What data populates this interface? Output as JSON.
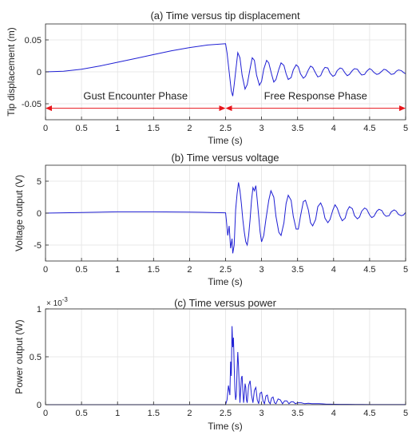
{
  "chart_data": [
    {
      "type": "line",
      "title": "(a) Time versus tip displacement",
      "xlabel": "Time (s)",
      "ylabel": "Tip displacement (m)",
      "xlim": [
        0,
        5
      ],
      "ylim": [
        -0.075,
        0.075
      ],
      "xticks": [
        0,
        0.5,
        1,
        1.5,
        2,
        2.5,
        3,
        3.5,
        4,
        4.5,
        5
      ],
      "xtick_labels": [
        "0",
        "0.5",
        "1",
        "1.5",
        "2",
        "2.5",
        "3",
        "3.5",
        "4",
        "4.5",
        "5"
      ],
      "yticks": [
        -0.05,
        0,
        0.05
      ],
      "ytick_labels": [
        "-0.05",
        "0",
        "0.05"
      ],
      "grid": true,
      "line_color": "#1f1fd4",
      "annotation_color": "#e8151b",
      "annotations": [
        {
          "text": "Gust Encounter Phase",
          "x_from": 0,
          "x_to": 2.5,
          "y": -0.057,
          "label_x": 1.25,
          "label_y": -0.043
        },
        {
          "text": "Free Response Phase",
          "x_from": 2.5,
          "x_to": 5,
          "y": -0.057,
          "label_x": 3.75,
          "label_y": -0.043
        }
      ],
      "series": [
        {
          "x": [
            0,
            0.25,
            0.5,
            0.75,
            1,
            1.25,
            1.5,
            1.75,
            2,
            2.25,
            2.5,
            2.52,
            2.55,
            2.58,
            2.6,
            2.62,
            2.65,
            2.67,
            2.7,
            2.73,
            2.77,
            2.8,
            2.84,
            2.87,
            2.9,
            2.93,
            2.97,
            3.0,
            3.03,
            3.07,
            3.1,
            3.14,
            3.17,
            3.2,
            3.24,
            3.27,
            3.31,
            3.34,
            3.37,
            3.41,
            3.44,
            3.48,
            3.51,
            3.54,
            3.58,
            3.61,
            3.65,
            3.68,
            3.71,
            3.75,
            3.78,
            3.82,
            3.85,
            3.88,
            3.92,
            3.95,
            3.99,
            4.02,
            4.05,
            4.09,
            4.12,
            4.16,
            4.19,
            4.22,
            4.26,
            4.29,
            4.33,
            4.36,
            4.39,
            4.43,
            4.46,
            4.5,
            4.53,
            4.56,
            4.6,
            4.63,
            4.67,
            4.7,
            4.73,
            4.77,
            4.8,
            4.84,
            4.87,
            4.9,
            4.94,
            4.97,
            5.0
          ],
          "y": [
            0,
            0.001,
            0.004,
            0.009,
            0.015,
            0.021,
            0.027,
            0.033,
            0.038,
            0.042,
            0.044,
            0.03,
            0.0,
            -0.03,
            -0.038,
            -0.02,
            0.01,
            0.03,
            0.022,
            -0.005,
            -0.027,
            -0.02,
            0.005,
            0.022,
            0.018,
            -0.005,
            -0.021,
            -0.015,
            0.004,
            0.018,
            0.014,
            -0.004,
            -0.016,
            -0.012,
            0.004,
            0.014,
            0.01,
            -0.003,
            -0.012,
            -0.009,
            0.003,
            0.011,
            0.008,
            -0.003,
            -0.01,
            -0.007,
            0.003,
            0.009,
            0.007,
            -0.002,
            -0.008,
            -0.006,
            0.002,
            0.007,
            0.006,
            -0.002,
            -0.007,
            -0.005,
            0.002,
            0.006,
            0.005,
            -0.002,
            -0.006,
            -0.004,
            0.002,
            0.005,
            0.004,
            -0.001,
            -0.005,
            -0.004,
            0.001,
            0.005,
            0.003,
            -0.001,
            -0.004,
            -0.003,
            0.001,
            0.004,
            0.003,
            -0.001,
            -0.004,
            -0.003,
            0.001,
            0.003,
            0.002,
            -0.001,
            -0.003
          ]
        }
      ]
    },
    {
      "type": "line",
      "title": "(b) Time versus voltage",
      "xlabel": "Time (s)",
      "ylabel": "Voltage output (V)",
      "xlim": [
        0,
        5
      ],
      "ylim": [
        -7.5,
        7.5
      ],
      "xticks": [
        0,
        0.5,
        1,
        1.5,
        2,
        2.5,
        3,
        3.5,
        4,
        4.5,
        5
      ],
      "xtick_labels": [
        "0",
        "0.5",
        "1",
        "1.5",
        "2",
        "2.5",
        "3",
        "3.5",
        "4",
        "4.5",
        "5"
      ],
      "yticks": [
        -5,
        0,
        5
      ],
      "ytick_labels": [
        "-5",
        "0",
        "5"
      ],
      "grid": true,
      "line_color": "#1f1fd4",
      "series": [
        {
          "x": [
            0,
            0.5,
            1,
            1.5,
            2,
            2.3,
            2.5,
            2.51,
            2.53,
            2.55,
            2.57,
            2.59,
            2.6,
            2.62,
            2.64,
            2.66,
            2.68,
            2.7,
            2.72,
            2.74,
            2.76,
            2.78,
            2.8,
            2.82,
            2.84,
            2.86,
            2.88,
            2.9,
            2.92,
            2.94,
            2.96,
            2.98,
            3.0,
            3.03,
            3.06,
            3.1,
            3.13,
            3.17,
            3.2,
            3.24,
            3.27,
            3.31,
            3.34,
            3.37,
            3.41,
            3.44,
            3.48,
            3.51,
            3.54,
            3.58,
            3.61,
            3.65,
            3.68,
            3.71,
            3.75,
            3.78,
            3.82,
            3.85,
            3.88,
            3.92,
            3.95,
            3.99,
            4.02,
            4.05,
            4.09,
            4.12,
            4.16,
            4.19,
            4.22,
            4.26,
            4.29,
            4.33,
            4.36,
            4.39,
            4.43,
            4.46,
            4.5,
            4.53,
            4.56,
            4.6,
            4.63,
            4.67,
            4.7,
            4.73,
            4.77,
            4.8,
            4.84,
            4.87,
            4.9,
            4.94,
            4.97,
            5.0
          ],
          "y": [
            0,
            0.1,
            0.2,
            0.2,
            0.15,
            0.1,
            0.05,
            -1.0,
            -3.5,
            -2.0,
            -5.5,
            -4.0,
            -6.3,
            -5.0,
            0.5,
            3.0,
            4.8,
            3.5,
            1.5,
            -1.0,
            -3.0,
            -4.5,
            -5.0,
            -3.5,
            -1.0,
            2.0,
            4.0,
            3.5,
            4.3,
            2.0,
            -0.5,
            -3.0,
            -4.5,
            -3.5,
            -1.0,
            2.0,
            3.5,
            2.5,
            -0.5,
            -3.0,
            -3.5,
            -1.5,
            1.5,
            2.8,
            2.0,
            -0.5,
            -2.5,
            -2.5,
            -0.5,
            1.8,
            2.0,
            0.5,
            -1.5,
            -2.0,
            -1.0,
            1.0,
            1.6,
            0.8,
            -0.8,
            -1.5,
            -1.0,
            0.5,
            1.3,
            0.8,
            -0.5,
            -1.2,
            -0.8,
            0.4,
            1.0,
            0.7,
            -0.4,
            -0.9,
            -0.6,
            0.3,
            0.8,
            0.6,
            -0.3,
            -0.7,
            -0.5,
            0.3,
            0.6,
            0.4,
            -0.2,
            -0.5,
            -0.4,
            0.2,
            0.5,
            0.3,
            -0.2,
            -0.4,
            -0.3,
            0.1
          ]
        }
      ]
    },
    {
      "type": "line",
      "title": "(c) Time versus power",
      "xlabel": "Time (s)",
      "ylabel": "Power output (W)",
      "exponent_base": "× 10",
      "exponent_power": "-3",
      "xlim": [
        0,
        5
      ],
      "ylim": [
        0,
        1
      ],
      "xticks": [
        0,
        0.5,
        1,
        1.5,
        2,
        2.5,
        3,
        3.5,
        4,
        4.5,
        5
      ],
      "xtick_labels": [
        "0",
        "0.5",
        "1",
        "1.5",
        "2",
        "2.5",
        "3",
        "3.5",
        "4",
        "4.5",
        "5"
      ],
      "yticks": [
        0,
        0.5,
        1
      ],
      "ytick_labels": [
        "0",
        "0.5",
        "1"
      ],
      "grid": true,
      "line_color": "#1f1fd4",
      "series": [
        {
          "x": [
            0,
            1,
            2,
            2.5,
            2.52,
            2.54,
            2.56,
            2.57,
            2.58,
            2.59,
            2.6,
            2.61,
            2.62,
            2.63,
            2.64,
            2.65,
            2.66,
            2.67,
            2.68,
            2.69,
            2.7,
            2.71,
            2.72,
            2.73,
            2.74,
            2.75,
            2.76,
            2.77,
            2.78,
            2.79,
            2.8,
            2.82,
            2.84,
            2.86,
            2.88,
            2.9,
            2.92,
            2.94,
            2.96,
            2.98,
            3.0,
            3.02,
            3.04,
            3.06,
            3.08,
            3.1,
            3.12,
            3.14,
            3.16,
            3.18,
            3.2,
            3.23,
            3.26,
            3.29,
            3.32,
            3.35,
            3.38,
            3.41,
            3.44,
            3.47,
            3.5,
            3.55,
            3.6,
            3.65,
            3.7,
            3.75,
            3.8,
            3.85,
            3.9,
            3.95,
            4.0,
            4.1,
            4.2,
            4.3,
            4.4,
            4.5,
            4.6,
            4.7,
            4.8,
            4.9,
            5.0
          ],
          "y": [
            0,
            0,
            0,
            0,
            0.05,
            0.2,
            0.1,
            0.45,
            0.3,
            0.82,
            0.6,
            0.7,
            0.4,
            0.15,
            0.05,
            0.1,
            0.35,
            0.55,
            0.4,
            0.2,
            0.02,
            0.15,
            0.28,
            0.3,
            0.15,
            0.02,
            0.1,
            0.22,
            0.18,
            0.05,
            0.02,
            0.2,
            0.25,
            0.1,
            0.02,
            0.15,
            0.18,
            0.05,
            0.01,
            0.12,
            0.13,
            0.04,
            0.01,
            0.09,
            0.1,
            0.03,
            0.01,
            0.07,
            0.08,
            0.02,
            0.01,
            0.06,
            0.05,
            0.01,
            0.04,
            0.04,
            0.01,
            0.03,
            0.03,
            0.01,
            0.02,
            0.02,
            0.01,
            0.015,
            0.01,
            0.01,
            0.01,
            0.008,
            0.005,
            0.005,
            0.004,
            0.003,
            0.003,
            0.002,
            0.002,
            0.001,
            0.001,
            0.001,
            0.001,
            0.001,
            0.001
          ]
        }
      ]
    }
  ]
}
